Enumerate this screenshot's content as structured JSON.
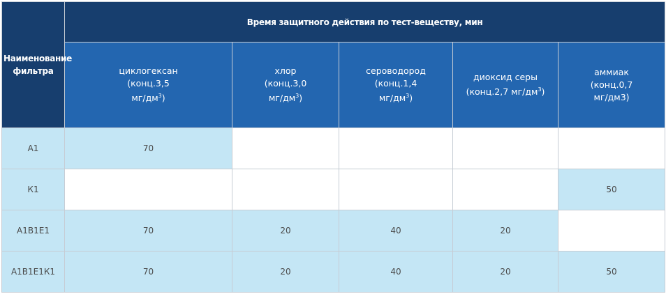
{
  "table": {
    "corner_label": "Наименование фильтра",
    "group_header": "Время защитного действия по тест-веществу, мин",
    "columns": [
      {
        "name": "циклогексан",
        "conc": "(конц.3,5",
        "unit_main": "мг/дм",
        "unit_sup": "3",
        "unit_tail": ")"
      },
      {
        "name": "хлор",
        "conc": "(конц.3,0",
        "unit_main": "мг/дм",
        "unit_sup": "3",
        "unit_tail": ")"
      },
      {
        "name": "сероводород",
        "conc": "(конц.1,4",
        "unit_main": "мг/дм",
        "unit_sup": "3",
        "unit_tail": ")"
      },
      {
        "name": "диоксид серы",
        "conc": "(конц.2,7 мг/дм",
        "unit_sup": "3",
        "unit_tail": ")"
      },
      {
        "name": "аммиак",
        "conc": "(конц.0,7",
        "unit_main": "мг/дм3)",
        "unit_sup": "",
        "unit_tail": ""
      }
    ],
    "rows": [
      {
        "filter": "А1",
        "values": [
          "70",
          "",
          "",
          "",
          ""
        ]
      },
      {
        "filter": "К1",
        "values": [
          "",
          "",
          "",
          "",
          "50"
        ]
      },
      {
        "filter": "А1В1Е1",
        "values": [
          "70",
          "20",
          "40",
          "20",
          ""
        ]
      },
      {
        "filter": "А1В1Е1К1",
        "values": [
          "70",
          "20",
          "40",
          "20",
          "50"
        ]
      }
    ]
  },
  "colors": {
    "header_dark": "#173e6e",
    "header_blue": "#2366b0",
    "cell_fill": "#c4e6f5",
    "border": "#c6ccd4"
  }
}
